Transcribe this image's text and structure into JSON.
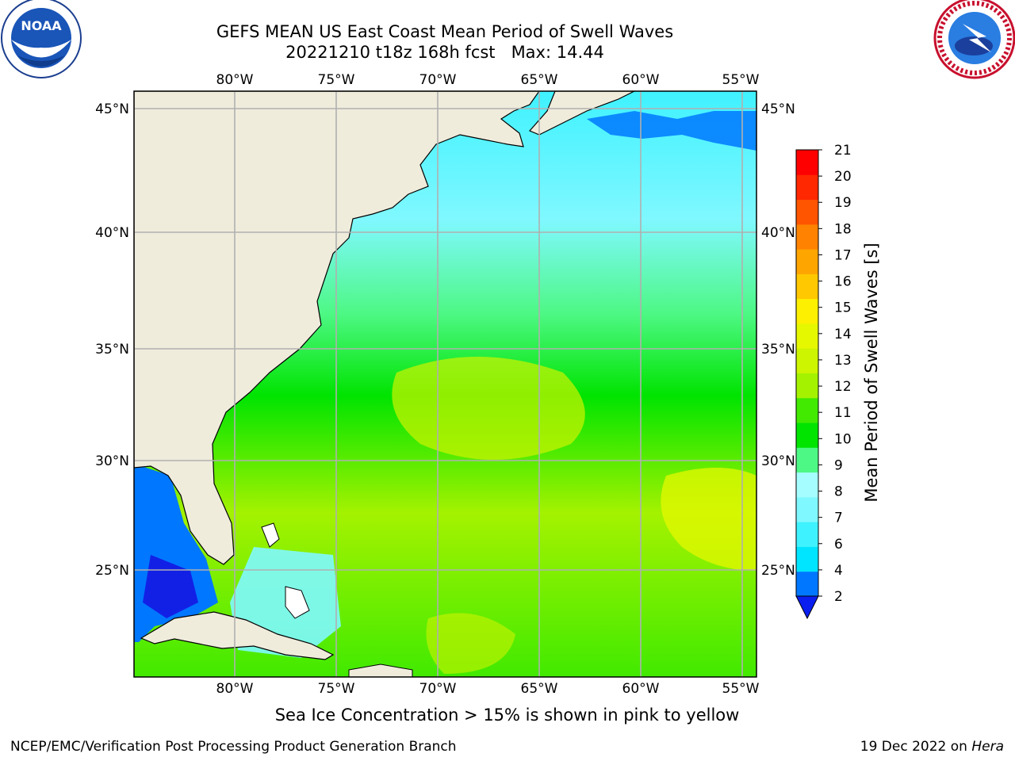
{
  "header": {
    "title_line1": "GEFS MEAN US East Coast Mean Period of Swell Waves",
    "title_line2": "20221210 t18z 168h fcst   Max: 14.44"
  },
  "logos": {
    "left": {
      "icon": "noaa-logo",
      "text": "NOAA"
    },
    "right": {
      "icon": "nws-logo",
      "text": "NATIONAL WEATHER SERVICE"
    }
  },
  "map": {
    "lon_labels": [
      "80°W",
      "75°W",
      "70°W",
      "65°W",
      "60°W",
      "55°W"
    ],
    "lat_labels": [
      "45°N",
      "40°N",
      "35°N",
      "30°N",
      "25°N"
    ],
    "lon_range": [
      "85°W",
      "54.5°W"
    ],
    "lat_range": [
      "20.5°N",
      "46°N"
    ],
    "land_color": "#efecdc",
    "grid_color": "#b0b0b0"
  },
  "colorbar": {
    "title": "Mean Period of Swell Waves [s]",
    "ticks": [
      "2",
      "4",
      "6",
      "7",
      "8",
      "9",
      "10",
      "11",
      "12",
      "13",
      "14",
      "15",
      "16",
      "17",
      "18",
      "19",
      "20",
      "21"
    ],
    "colors": [
      "#0077ff",
      "#00e5ff",
      "#3ff2ff",
      "#80f8ff",
      "#a6fdff",
      "#4df884",
      "#00e400",
      "#41ea00",
      "#a4f200",
      "#cdf400",
      "#e6f800",
      "#fdf000",
      "#ffc800",
      "#ffa500",
      "#ff8200",
      "#ff5500",
      "#ff2800",
      "#ff0000"
    ],
    "extend_color": "#0a1ef0"
  },
  "footer": {
    "sea_ice_note": "Sea Ice Concentration > 15% is shown in pink to yellow",
    "credit": "NCEP/EMC/Verification Post Processing Product Generation Branch",
    "date_text": "19 Dec 2022 on ",
    "machine": "Hera"
  }
}
